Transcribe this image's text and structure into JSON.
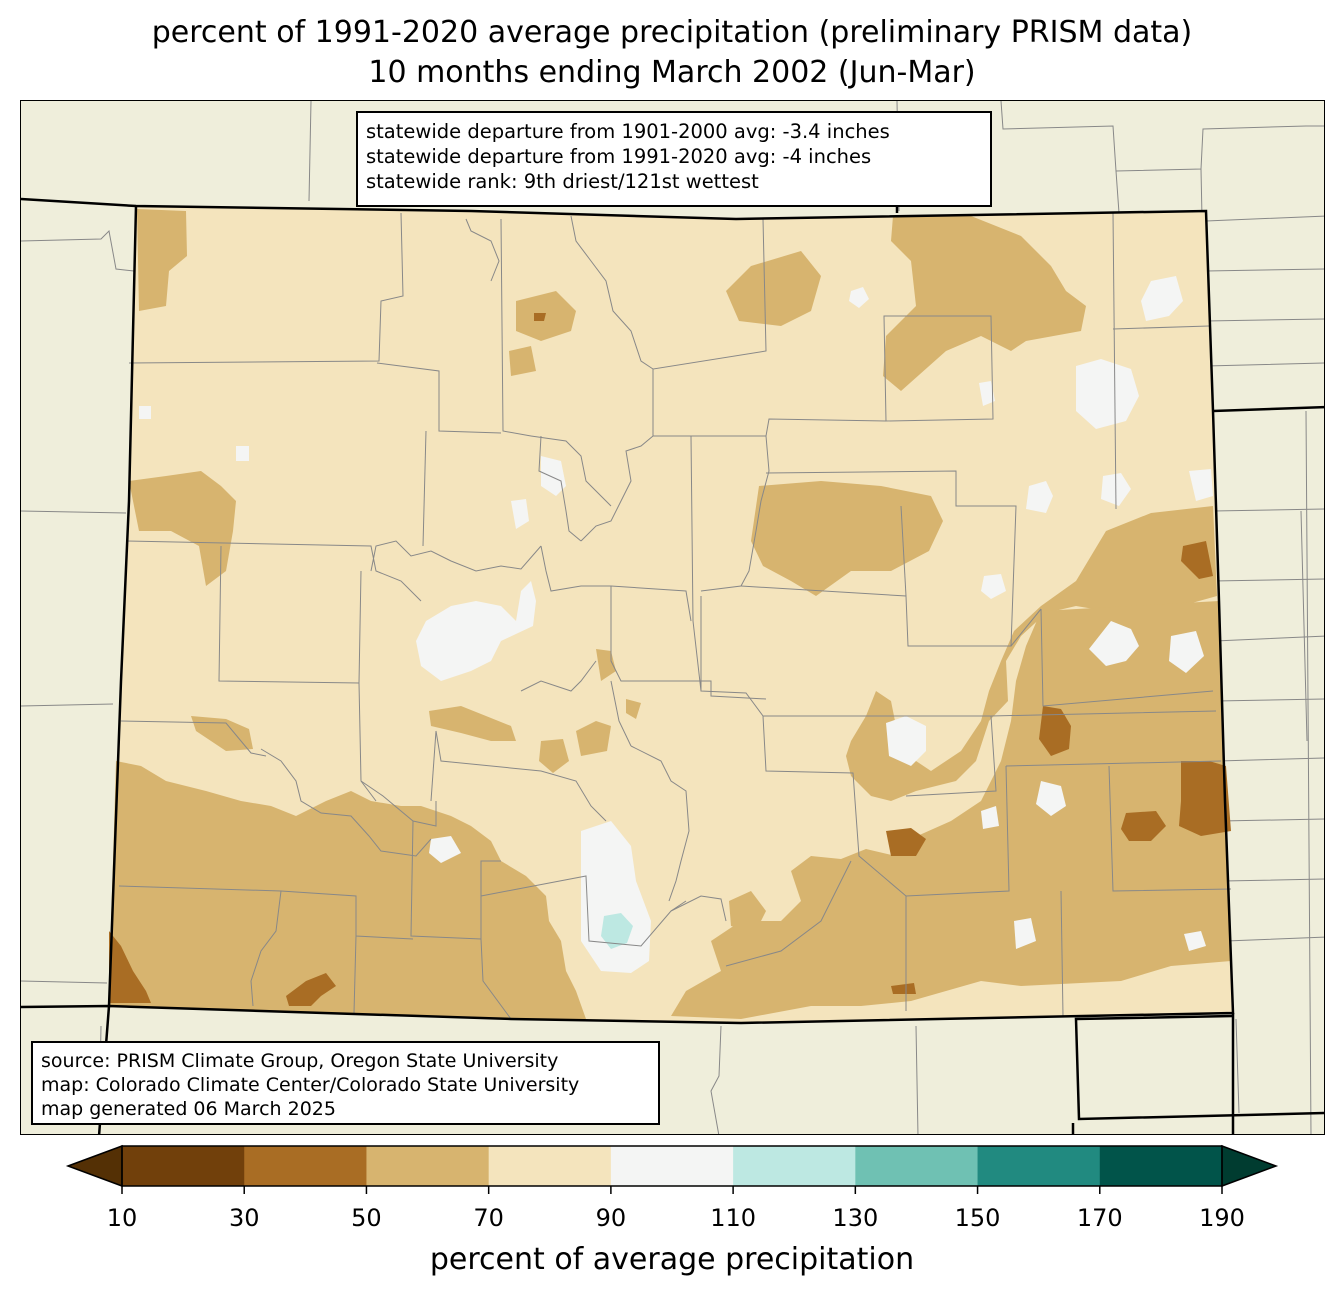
{
  "title": {
    "line1": "percent of 1991-2020 average precipitation (preliminary PRISM data)",
    "line2": "10 months ending March 2002 (Jun-Mar)"
  },
  "stats": {
    "line1": "statewide departure from 1901-2000 avg: -3.4 inches",
    "line2": "statewide departure from 1991-2020 avg: -4 inches",
    "line3": "statewide rank: 9th driest/121st wettest"
  },
  "source": {
    "line1": "source: PRISM Climate Group, Oregon State University",
    "line2": "map: Colorado Climate Center/Colorado State University",
    "line3": "map generated 06 March 2025"
  },
  "colorbar": {
    "label": "percent of average precipitation",
    "ticks": [
      "10",
      "30",
      "50",
      "70",
      "90",
      "110",
      "130",
      "150",
      "170",
      "190"
    ],
    "under_color": "#543005",
    "over_color": "#003c30",
    "colors": [
      "#71400b",
      "#a96d24",
      "#d7b46f",
      "#f4e4bd",
      "#f4f5f4",
      "#bde8e2",
      "#6fc1b3",
      "#218a80",
      "#01544a"
    ]
  },
  "map_colors": {
    "background": "#efeedb",
    "c30_50": "#a96d24",
    "c50_70": "#d7b46f",
    "c70_90": "#f4e4bd",
    "c90_110": "#f4f5f4",
    "c110_130": "#bde8e2"
  }
}
